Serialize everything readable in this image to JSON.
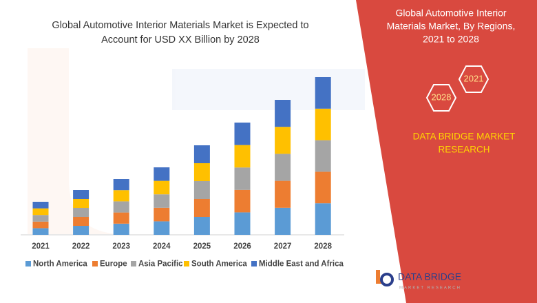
{
  "chart_data": {
    "type": "stacked_bar",
    "title": [
      "Global Automotive Interior Materials Market is Expected to",
      "Account for USD XX Billion by 2028"
    ],
    "categories": [
      "2021",
      "2022",
      "2023",
      "2024",
      "2025",
      "2026",
      "2027",
      "2028"
    ],
    "series": [
      {
        "name": "North America",
        "color": "#5b9bd5",
        "values": [
          9.6,
          13,
          16.2,
          19.6,
          26,
          32.6,
          39.2,
          45.8
        ]
      },
      {
        "name": "Europe",
        "color": "#ed7d31",
        "values": [
          9.6,
          13,
          16.2,
          19.6,
          26,
          32.6,
          39.2,
          45.8
        ]
      },
      {
        "name": "Asia Pacific",
        "color": "#a5a5a5",
        "values": [
          9.6,
          13,
          16.2,
          19.6,
          26,
          32.6,
          39.2,
          45.8
        ]
      },
      {
        "name": "South America",
        "color": "#ffc000",
        "values": [
          9.6,
          13,
          16.2,
          19.6,
          26,
          32.6,
          39.2,
          45.8
        ]
      },
      {
        "name": "Middle East and Africa",
        "color": "#4472c4",
        "values": [
          9.6,
          13,
          16.2,
          19.6,
          26,
          32.6,
          39.2,
          45.8
        ]
      }
    ]
  },
  "panel": {
    "title": [
      "Global Automotive Interior",
      "Materials Market, By Regions,",
      "2021 to 2028"
    ],
    "hex_labels": [
      "2021",
      "2028"
    ],
    "brand": [
      "DATA BRIDGE MARKET",
      "RESEARCH"
    ]
  },
  "logo": {
    "name": "DATA BRIDGE",
    "tagline": "MARKET RESEARCH"
  }
}
